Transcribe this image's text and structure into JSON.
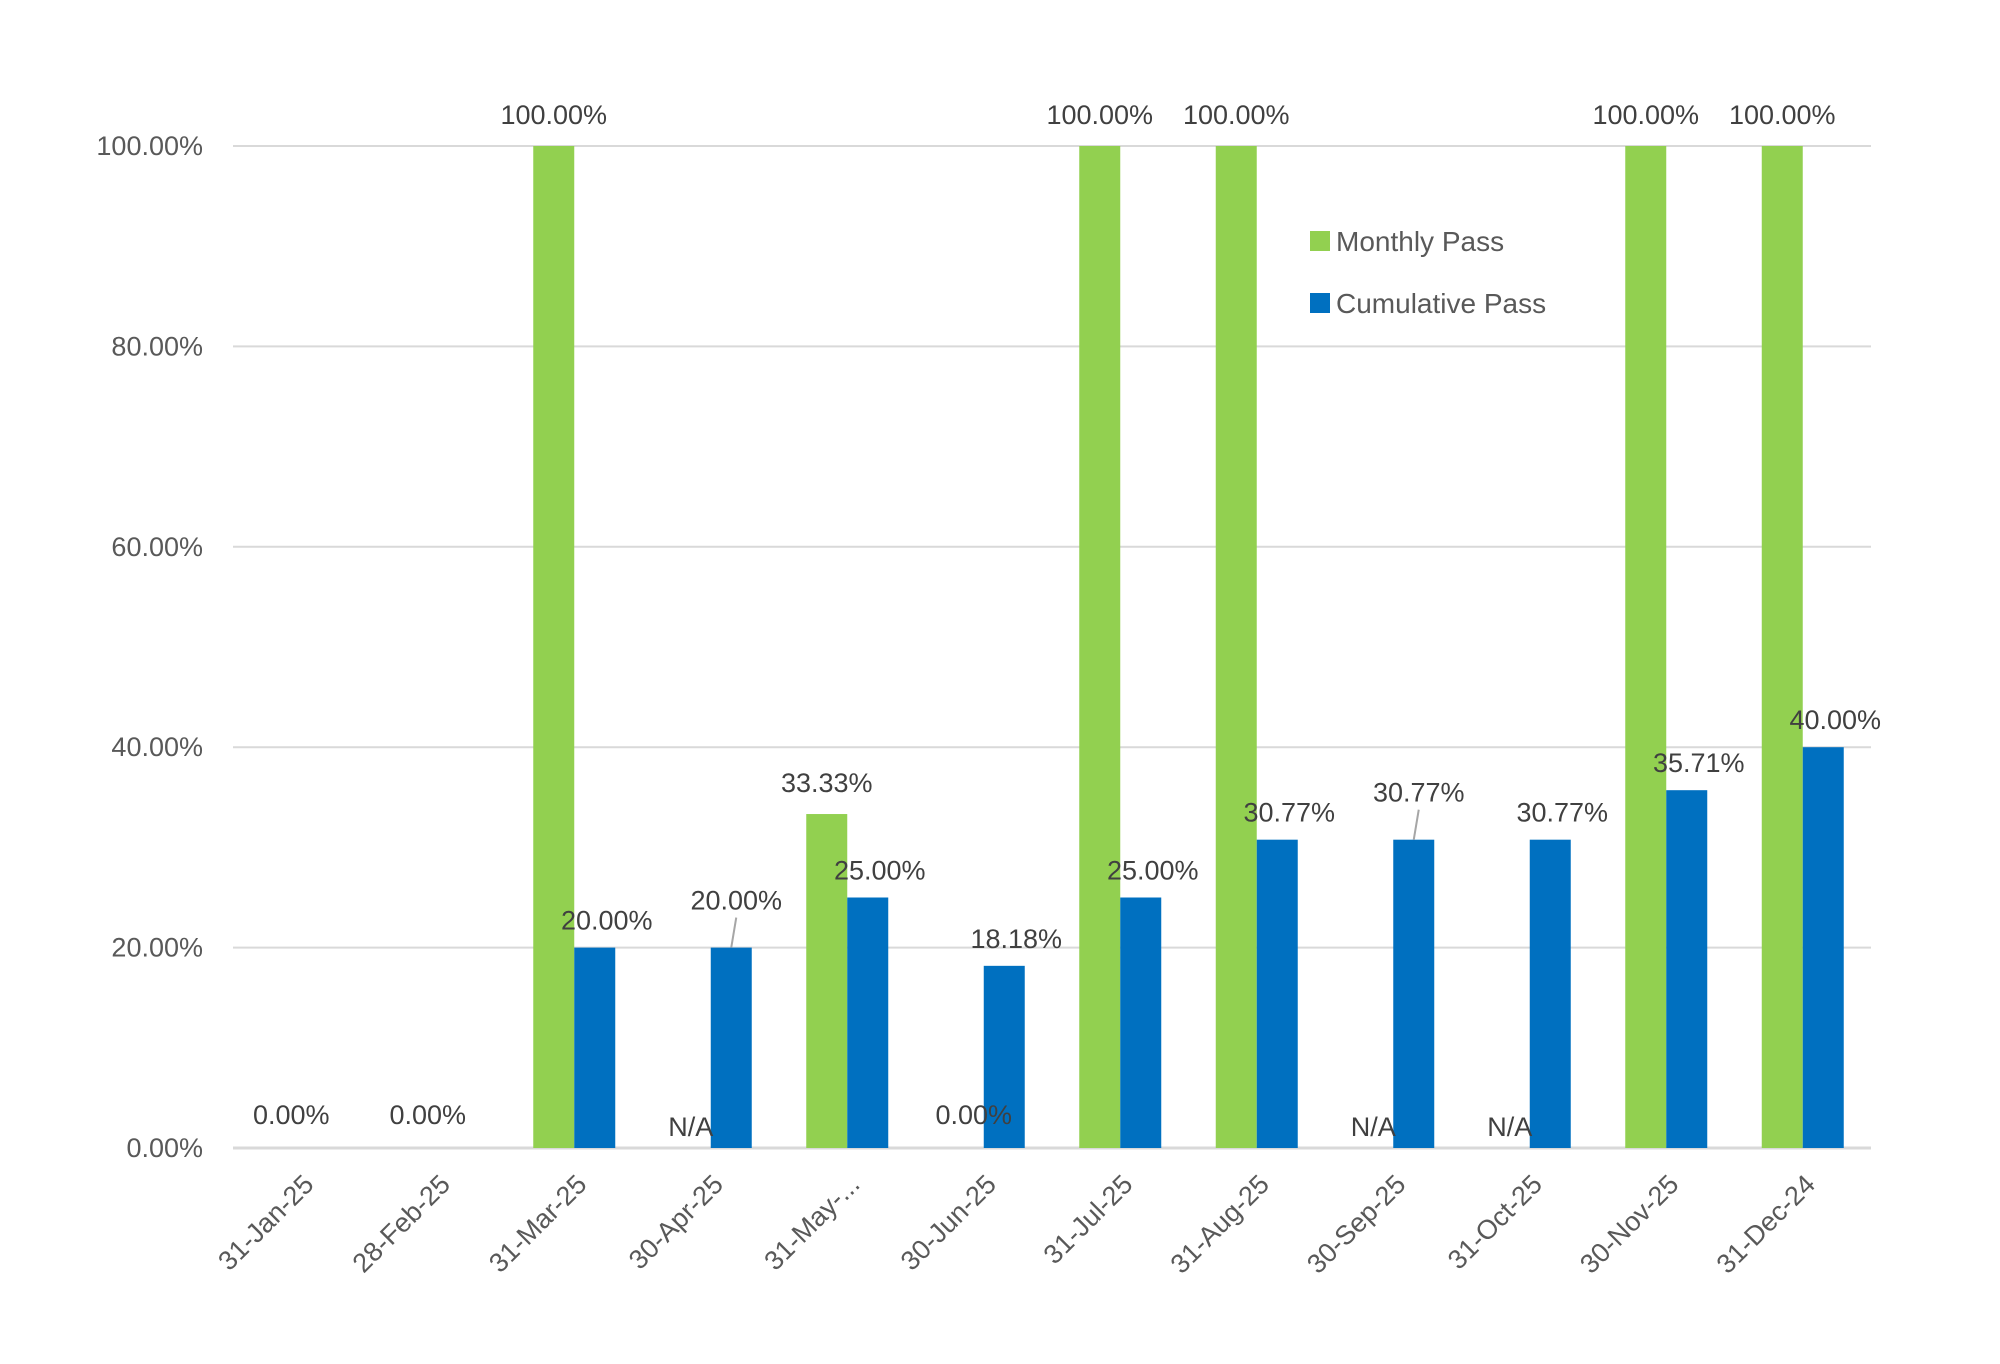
{
  "chart_data": {
    "type": "bar",
    "title": "",
    "xlabel": "",
    "ylabel": "",
    "ylim": [
      0,
      100
    ],
    "yticks": [
      "0.00%",
      "20.00%",
      "40.00%",
      "60.00%",
      "80.00%",
      "100.00%"
    ],
    "ytick_values": [
      0,
      20,
      40,
      60,
      80,
      100
    ],
    "grid": true,
    "legend_position": "top-right (inside plot)",
    "categories": [
      "31-Jan-25",
      "28-Feb-25",
      "31-Mar-25",
      "30-Apr-25",
      "31-May-...",
      "30-Jun-25",
      "31-Jul-25",
      "31-Aug-25",
      "30-Sep-25",
      "31-Oct-25",
      "30-Nov-25",
      "31-Dec-24"
    ],
    "series": [
      {
        "name": "Monthly Pass",
        "color": "#92D050",
        "values": [
          0,
          0,
          100,
          null,
          33.33,
          0,
          100,
          100,
          null,
          null,
          100,
          100
        ],
        "labels": [
          "0.00%",
          "0.00%",
          "100.00%",
          "N/A",
          "33.33%",
          "0.00%",
          "100.00%",
          "100.00%",
          "N/A",
          "N/A",
          "100.00%",
          "100.00%"
        ]
      },
      {
        "name": "Cumulative Pass",
        "color": "#0070C0",
        "values": [
          null,
          null,
          20,
          20,
          25,
          18.18,
          25,
          30.77,
          30.77,
          30.77,
          35.71,
          40
        ],
        "labels": [
          "",
          "",
          "20.00%",
          "20.00%",
          "25.00%",
          "18.18%",
          "25.00%",
          "30.77%",
          "30.77%",
          "30.77%",
          "35.71%",
          "40.00%"
        ]
      }
    ]
  }
}
